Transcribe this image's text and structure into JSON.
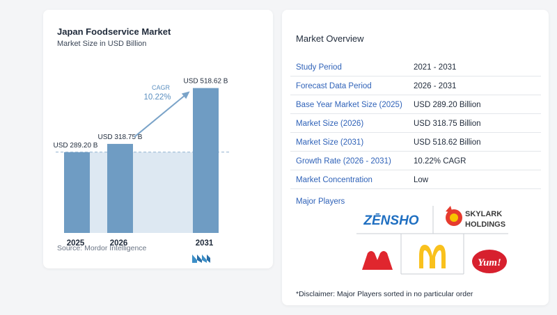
{
  "chart": {
    "title": "Japan Foodservice Market",
    "subtitle": "Market Size in USD Billion",
    "cagr_label": "CAGR",
    "cagr_value": "10.22%",
    "source": "Source:  Mordor Intelligence"
  },
  "chart_data": {
    "type": "bar",
    "title": "Japan Foodservice Market",
    "subtitle": "Market Size in USD Billion",
    "categories": [
      "2025",
      "2026",
      "2031"
    ],
    "values": [
      289.2,
      318.75,
      518.62
    ],
    "value_labels": [
      "USD 289.20 B",
      "USD 318.75 B",
      "USD 518.62 B"
    ],
    "ylim": [
      0,
      560
    ],
    "grid": false,
    "annotations": [
      "CAGR",
      "10.22%"
    ],
    "colors": {
      "bar": "#6f9cc3",
      "base_band": "#dde8f2",
      "arrow": "#7aa3c8",
      "cagr_text": "#5b8fc0"
    }
  },
  "overview": {
    "title": "Market Overview",
    "rows": [
      {
        "key": "Study Period",
        "value": "2021 - 2031"
      },
      {
        "key": "Forecast Data Period",
        "value": "2026 - 2031"
      },
      {
        "key": "Base Year Market Size (2025)",
        "value": "USD 289.20 Billion"
      },
      {
        "key": "Market Size (2026)",
        "value": "USD 318.75 Billion"
      },
      {
        "key": "Market Size (2031)",
        "value": "USD 518.62 Billion"
      },
      {
        "key": "Growth Rate (2026 - 2031)",
        "value": "10.22% CAGR"
      },
      {
        "key": "Market Concentration",
        "value": "Low"
      }
    ],
    "players_title": "Major Players",
    "players": [
      {
        "name": "ZENSHO",
        "text": "ZĒNSHO"
      },
      {
        "name": "SKYLARK HOLDINGS",
        "line1": "SKYLARK",
        "line2": "HOLDINGS"
      },
      {
        "name": "MOS Burger",
        "text": ""
      },
      {
        "name": "McDonald's",
        "text": ""
      },
      {
        "name": "Yum!",
        "text": "Yum!"
      }
    ],
    "disclaimer": "*Disclaimer: Major Players sorted in no particular order"
  }
}
